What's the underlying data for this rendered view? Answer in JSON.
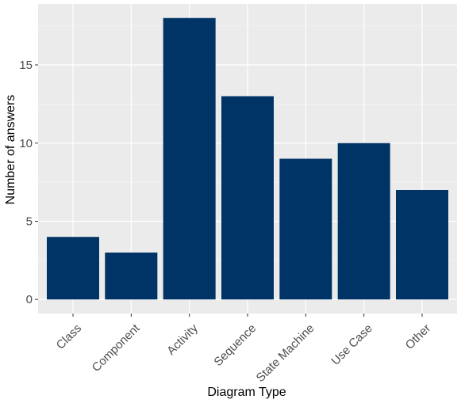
{
  "chart_data": {
    "type": "bar",
    "categories": [
      "Class",
      "Component",
      "Activity",
      "Sequence",
      "State Machine",
      "Use Case",
      "Other"
    ],
    "values": [
      4,
      3,
      18,
      13,
      9,
      10,
      7
    ],
    "xlabel": "Diagram Type",
    "ylabel": "Number of answers",
    "ylim": [
      -0.9,
      18.9
    ],
    "yticks": [
      0,
      5,
      10,
      15
    ],
    "grid": true,
    "colors": {
      "bar": "#003366",
      "panel": "#ebebeb",
      "grid_major": "#ffffff",
      "grid_minor": "#f5f5f5"
    }
  }
}
